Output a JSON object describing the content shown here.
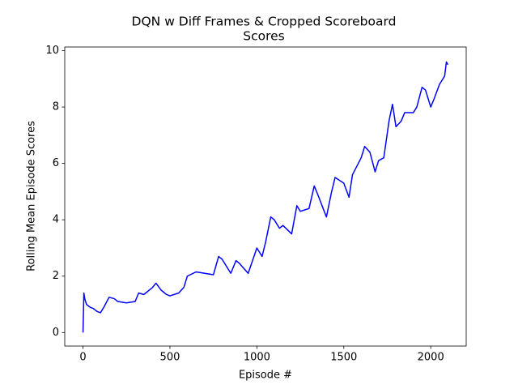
{
  "chart_data": {
    "type": "line",
    "title": "DQN w Diff Frames & Cropped Scoreboard",
    "subtitle": "Scores",
    "x_label": "Episode #",
    "y_label": "Rolling Mean Episode Scores",
    "x": [
      0,
      5,
      10,
      20,
      40,
      60,
      80,
      100,
      120,
      150,
      180,
      200,
      250,
      300,
      320,
      350,
      400,
      420,
      450,
      480,
      500,
      550,
      580,
      600,
      650,
      700,
      750,
      780,
      800,
      850,
      880,
      900,
      950,
      1000,
      1030,
      1050,
      1080,
      1100,
      1130,
      1150,
      1200,
      1230,
      1250,
      1300,
      1330,
      1350,
      1400,
      1430,
      1450,
      1500,
      1530,
      1550,
      1600,
      1620,
      1650,
      1680,
      1700,
      1730,
      1760,
      1780,
      1800,
      1830,
      1850,
      1900,
      1920,
      1950,
      1970,
      2000,
      2020,
      2050,
      2080,
      2090,
      2099
    ],
    "series": [
      {
        "name": "Scores",
        "color": "#0000ff",
        "values": [
          0,
          1.4,
          1.2,
          1.0,
          0.9,
          0.85,
          0.75,
          0.7,
          0.9,
          1.25,
          1.2,
          1.1,
          1.05,
          1.1,
          1.4,
          1.35,
          1.6,
          1.75,
          1.5,
          1.35,
          1.3,
          1.4,
          1.6,
          2.0,
          2.15,
          2.1,
          2.05,
          2.7,
          2.6,
          2.1,
          2.55,
          2.45,
          2.1,
          3.0,
          2.7,
          3.2,
          4.1,
          4.0,
          3.7,
          3.8,
          3.5,
          4.5,
          4.3,
          4.4,
          5.2,
          4.9,
          4.1,
          5.0,
          5.5,
          5.3,
          4.8,
          5.6,
          6.2,
          6.6,
          6.4,
          5.7,
          6.1,
          6.2,
          7.5,
          8.1,
          7.3,
          7.5,
          7.8,
          7.8,
          8.0,
          8.7,
          8.6,
          8.0,
          8.3,
          8.8,
          9.1,
          9.6,
          9.5
        ]
      }
    ],
    "xlim": [
      -105,
      2204
    ],
    "ylim": [
      -0.48,
      10.13
    ],
    "xticks": [
      0,
      500,
      1000,
      1500,
      2000
    ],
    "yticks": [
      0,
      2,
      4,
      6,
      8,
      10
    ],
    "grid": false
  }
}
